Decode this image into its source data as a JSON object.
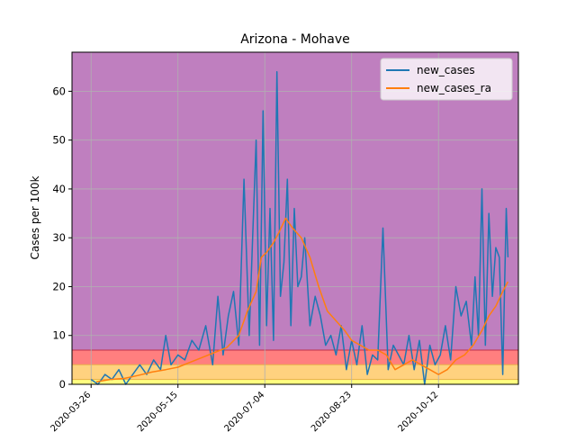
{
  "chart_data": {
    "type": "line",
    "title": "Arizona - Mohave",
    "xlabel": "",
    "ylabel": "Cases per 100k",
    "ylim": [
      0,
      68
    ],
    "xlim": [
      "2020-03-15",
      "2020-11-27"
    ],
    "x_ticks": [
      "2020-03-26",
      "2020-05-15",
      "2020-07-04",
      "2020-08-23",
      "2020-10-12"
    ],
    "y_ticks": [
      0,
      10,
      20,
      30,
      40,
      50,
      60
    ],
    "grid": true,
    "legend_position": "top-right",
    "bands": [
      {
        "from": 0,
        "to": 1,
        "color": "#ffff80"
      },
      {
        "from": 1,
        "to": 4,
        "color": "#ffd27f"
      },
      {
        "from": 4,
        "to": 7,
        "color": "#ff7f7f"
      },
      {
        "from": 7,
        "to": 68,
        "color": "#bf7fbf"
      }
    ],
    "series": [
      {
        "name": "new_cases",
        "color": "#1f77b4",
        "x": [
          "2020-03-26",
          "2020-03-30",
          "2020-04-03",
          "2020-04-07",
          "2020-04-11",
          "2020-04-15",
          "2020-04-19",
          "2020-04-23",
          "2020-04-27",
          "2020-05-01",
          "2020-05-05",
          "2020-05-08",
          "2020-05-11",
          "2020-05-15",
          "2020-05-19",
          "2020-05-23",
          "2020-05-27",
          "2020-05-31",
          "2020-06-04",
          "2020-06-07",
          "2020-06-10",
          "2020-06-13",
          "2020-06-16",
          "2020-06-19",
          "2020-06-22",
          "2020-06-25",
          "2020-06-27",
          "2020-06-29",
          "2020-07-01",
          "2020-07-03",
          "2020-07-05",
          "2020-07-07",
          "2020-07-09",
          "2020-07-11",
          "2020-07-13",
          "2020-07-15",
          "2020-07-17",
          "2020-07-19",
          "2020-07-21",
          "2020-07-23",
          "2020-07-25",
          "2020-07-27",
          "2020-07-30",
          "2020-08-02",
          "2020-08-05",
          "2020-08-08",
          "2020-08-11",
          "2020-08-14",
          "2020-08-17",
          "2020-08-20",
          "2020-08-23",
          "2020-08-26",
          "2020-08-29",
          "2020-09-01",
          "2020-09-04",
          "2020-09-07",
          "2020-09-10",
          "2020-09-13",
          "2020-09-16",
          "2020-09-19",
          "2020-09-22",
          "2020-09-25",
          "2020-09-28",
          "2020-10-01",
          "2020-10-04",
          "2020-10-07",
          "2020-10-10",
          "2020-10-13",
          "2020-10-16",
          "2020-10-19",
          "2020-10-22",
          "2020-10-25",
          "2020-10-28",
          "2020-10-31",
          "2020-11-02",
          "2020-11-04",
          "2020-11-06",
          "2020-11-08",
          "2020-11-10",
          "2020-11-12",
          "2020-11-14",
          "2020-11-16",
          "2020-11-18",
          "2020-11-20",
          "2020-11-21"
        ],
        "values": [
          1,
          0,
          2,
          1,
          3,
          0,
          2,
          4,
          2,
          5,
          3,
          10,
          4,
          6,
          5,
          9,
          7,
          12,
          4,
          18,
          6,
          14,
          19,
          8,
          42,
          10,
          30,
          50,
          8,
          56,
          12,
          36,
          9,
          64,
          18,
          25,
          42,
          12,
          36,
          20,
          22,
          30,
          12,
          18,
          14,
          8,
          10,
          6,
          12,
          3,
          9,
          4,
          12,
          2,
          6,
          5,
          32,
          3,
          8,
          6,
          4,
          10,
          3,
          9,
          0,
          8,
          4,
          6,
          12,
          5,
          20,
          14,
          17,
          8,
          22,
          10,
          40,
          8,
          35,
          18,
          28,
          26,
          2,
          36,
          26
        ]
      },
      {
        "name": "new_cases_ra",
        "color": "#ff7f0e",
        "x": [
          "2020-03-29",
          "2020-04-06",
          "2020-04-14",
          "2020-04-22",
          "2020-04-30",
          "2020-05-08",
          "2020-05-15",
          "2020-05-22",
          "2020-05-29",
          "2020-06-05",
          "2020-06-12",
          "2020-06-19",
          "2020-06-24",
          "2020-06-29",
          "2020-07-02",
          "2020-07-05",
          "2020-07-09",
          "2020-07-12",
          "2020-07-16",
          "2020-07-20",
          "2020-07-25",
          "2020-07-30",
          "2020-08-04",
          "2020-08-09",
          "2020-08-14",
          "2020-08-19",
          "2020-08-23",
          "2020-08-28",
          "2020-09-02",
          "2020-09-07",
          "2020-09-12",
          "2020-09-17",
          "2020-09-22",
          "2020-09-27",
          "2020-10-02",
          "2020-10-07",
          "2020-10-12",
          "2020-10-17",
          "2020-10-22",
          "2020-10-27",
          "2020-11-01",
          "2020-11-06",
          "2020-11-10",
          "2020-11-14",
          "2020-11-18",
          "2020-11-21"
        ],
        "values": [
          0.5,
          1,
          1.2,
          1.8,
          2.5,
          3,
          3.5,
          4.5,
          5.5,
          6.5,
          7.5,
          10,
          15,
          19,
          26,
          27,
          29,
          31,
          34,
          32,
          30,
          26,
          20,
          15,
          13,
          11,
          9,
          8,
          7,
          7,
          6,
          3,
          4,
          5,
          4,
          3,
          2,
          3,
          5,
          6,
          8,
          11,
          14,
          16,
          19,
          21
        ]
      }
    ]
  }
}
